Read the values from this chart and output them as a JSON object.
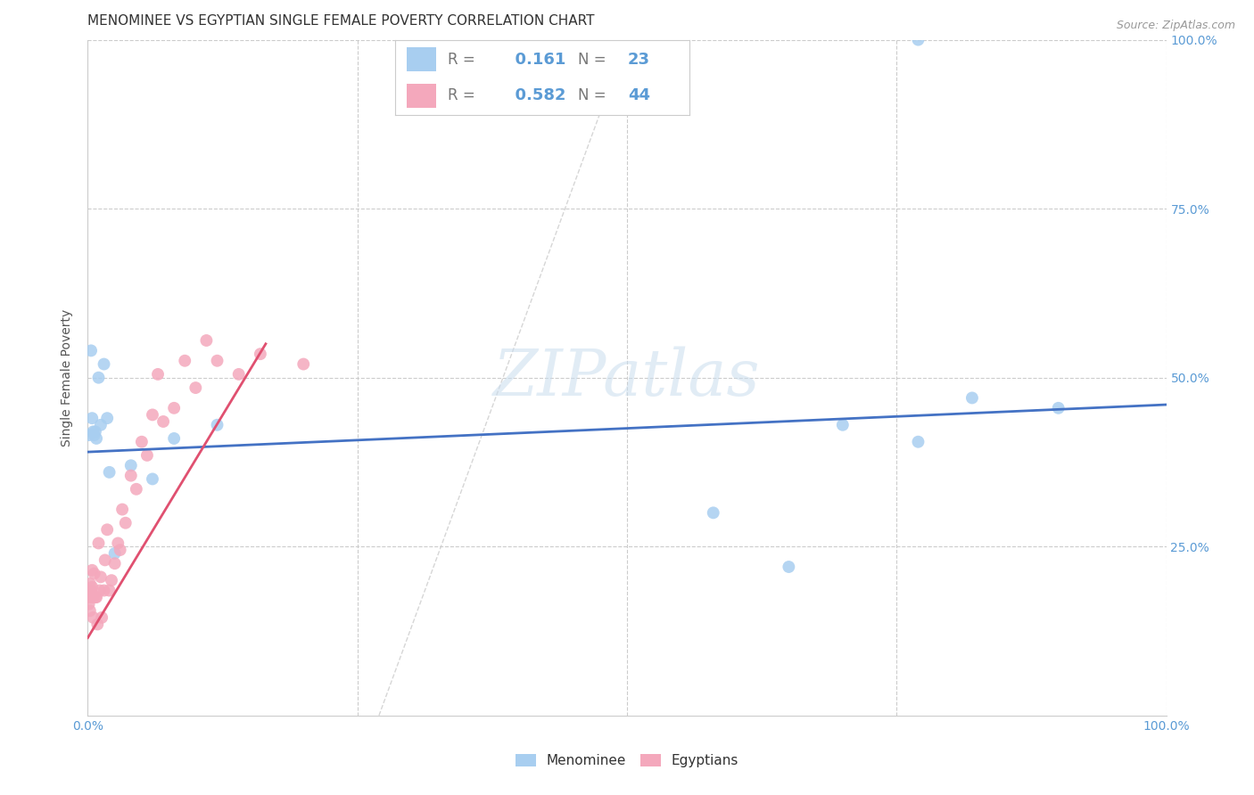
{
  "title": "MENOMINEE VS EGYPTIAN SINGLE FEMALE POVERTY CORRELATION CHART",
  "source": "Source: ZipAtlas.com",
  "ylabel": "Single Female Poverty",
  "xlim": [
    0,
    1
  ],
  "ylim": [
    0,
    1
  ],
  "menominee_color": "#A8CEF0",
  "egyptian_color": "#F4A8BC",
  "menominee_line_color": "#4472C4",
  "egyptian_line_color": "#E05070",
  "menominee_R": 0.161,
  "menominee_N": 23,
  "egyptian_R": 0.582,
  "egyptian_N": 44,
  "menominee_x": [
    0.001,
    0.003,
    0.004,
    0.005,
    0.006,
    0.007,
    0.008,
    0.01,
    0.012,
    0.015,
    0.018,
    0.02,
    0.025,
    0.04,
    0.06,
    0.08,
    0.12,
    0.58,
    0.65,
    0.7,
    0.77,
    0.82,
    0.9
  ],
  "menominee_y": [
    0.415,
    0.54,
    0.44,
    0.42,
    0.415,
    0.42,
    0.41,
    0.5,
    0.43,
    0.52,
    0.44,
    0.36,
    0.24,
    0.37,
    0.35,
    0.41,
    0.43,
    0.3,
    0.22,
    0.43,
    0.405,
    0.47,
    0.455
  ],
  "menominee_outlier_x": [
    0.77
  ],
  "menominee_outlier_y": [
    1.0
  ],
  "egyptian_x": [
    0.0,
    0.001,
    0.001,
    0.002,
    0.002,
    0.003,
    0.003,
    0.004,
    0.004,
    0.005,
    0.005,
    0.006,
    0.007,
    0.008,
    0.009,
    0.01,
    0.011,
    0.012,
    0.013,
    0.015,
    0.016,
    0.018,
    0.02,
    0.022,
    0.025,
    0.028,
    0.03,
    0.032,
    0.035,
    0.04,
    0.045,
    0.05,
    0.055,
    0.06,
    0.065,
    0.07,
    0.08,
    0.09,
    0.1,
    0.11,
    0.12,
    0.14,
    0.16,
    0.2
  ],
  "egyptian_y": [
    0.18,
    0.165,
    0.175,
    0.155,
    0.195,
    0.175,
    0.185,
    0.215,
    0.19,
    0.145,
    0.175,
    0.21,
    0.175,
    0.175,
    0.135,
    0.255,
    0.185,
    0.205,
    0.145,
    0.185,
    0.23,
    0.275,
    0.185,
    0.2,
    0.225,
    0.255,
    0.245,
    0.305,
    0.285,
    0.355,
    0.335,
    0.405,
    0.385,
    0.445,
    0.505,
    0.435,
    0.455,
    0.525,
    0.485,
    0.555,
    0.525,
    0.505,
    0.535,
    0.52
  ],
  "watermark_text": "ZIPatlas",
  "background_color": "#FFFFFF",
  "grid_color": "#CCCCCC",
  "title_fontsize": 11,
  "axis_label_fontsize": 10,
  "tick_fontsize": 10,
  "legend_fontsize": 12,
  "marker_size": 100
}
